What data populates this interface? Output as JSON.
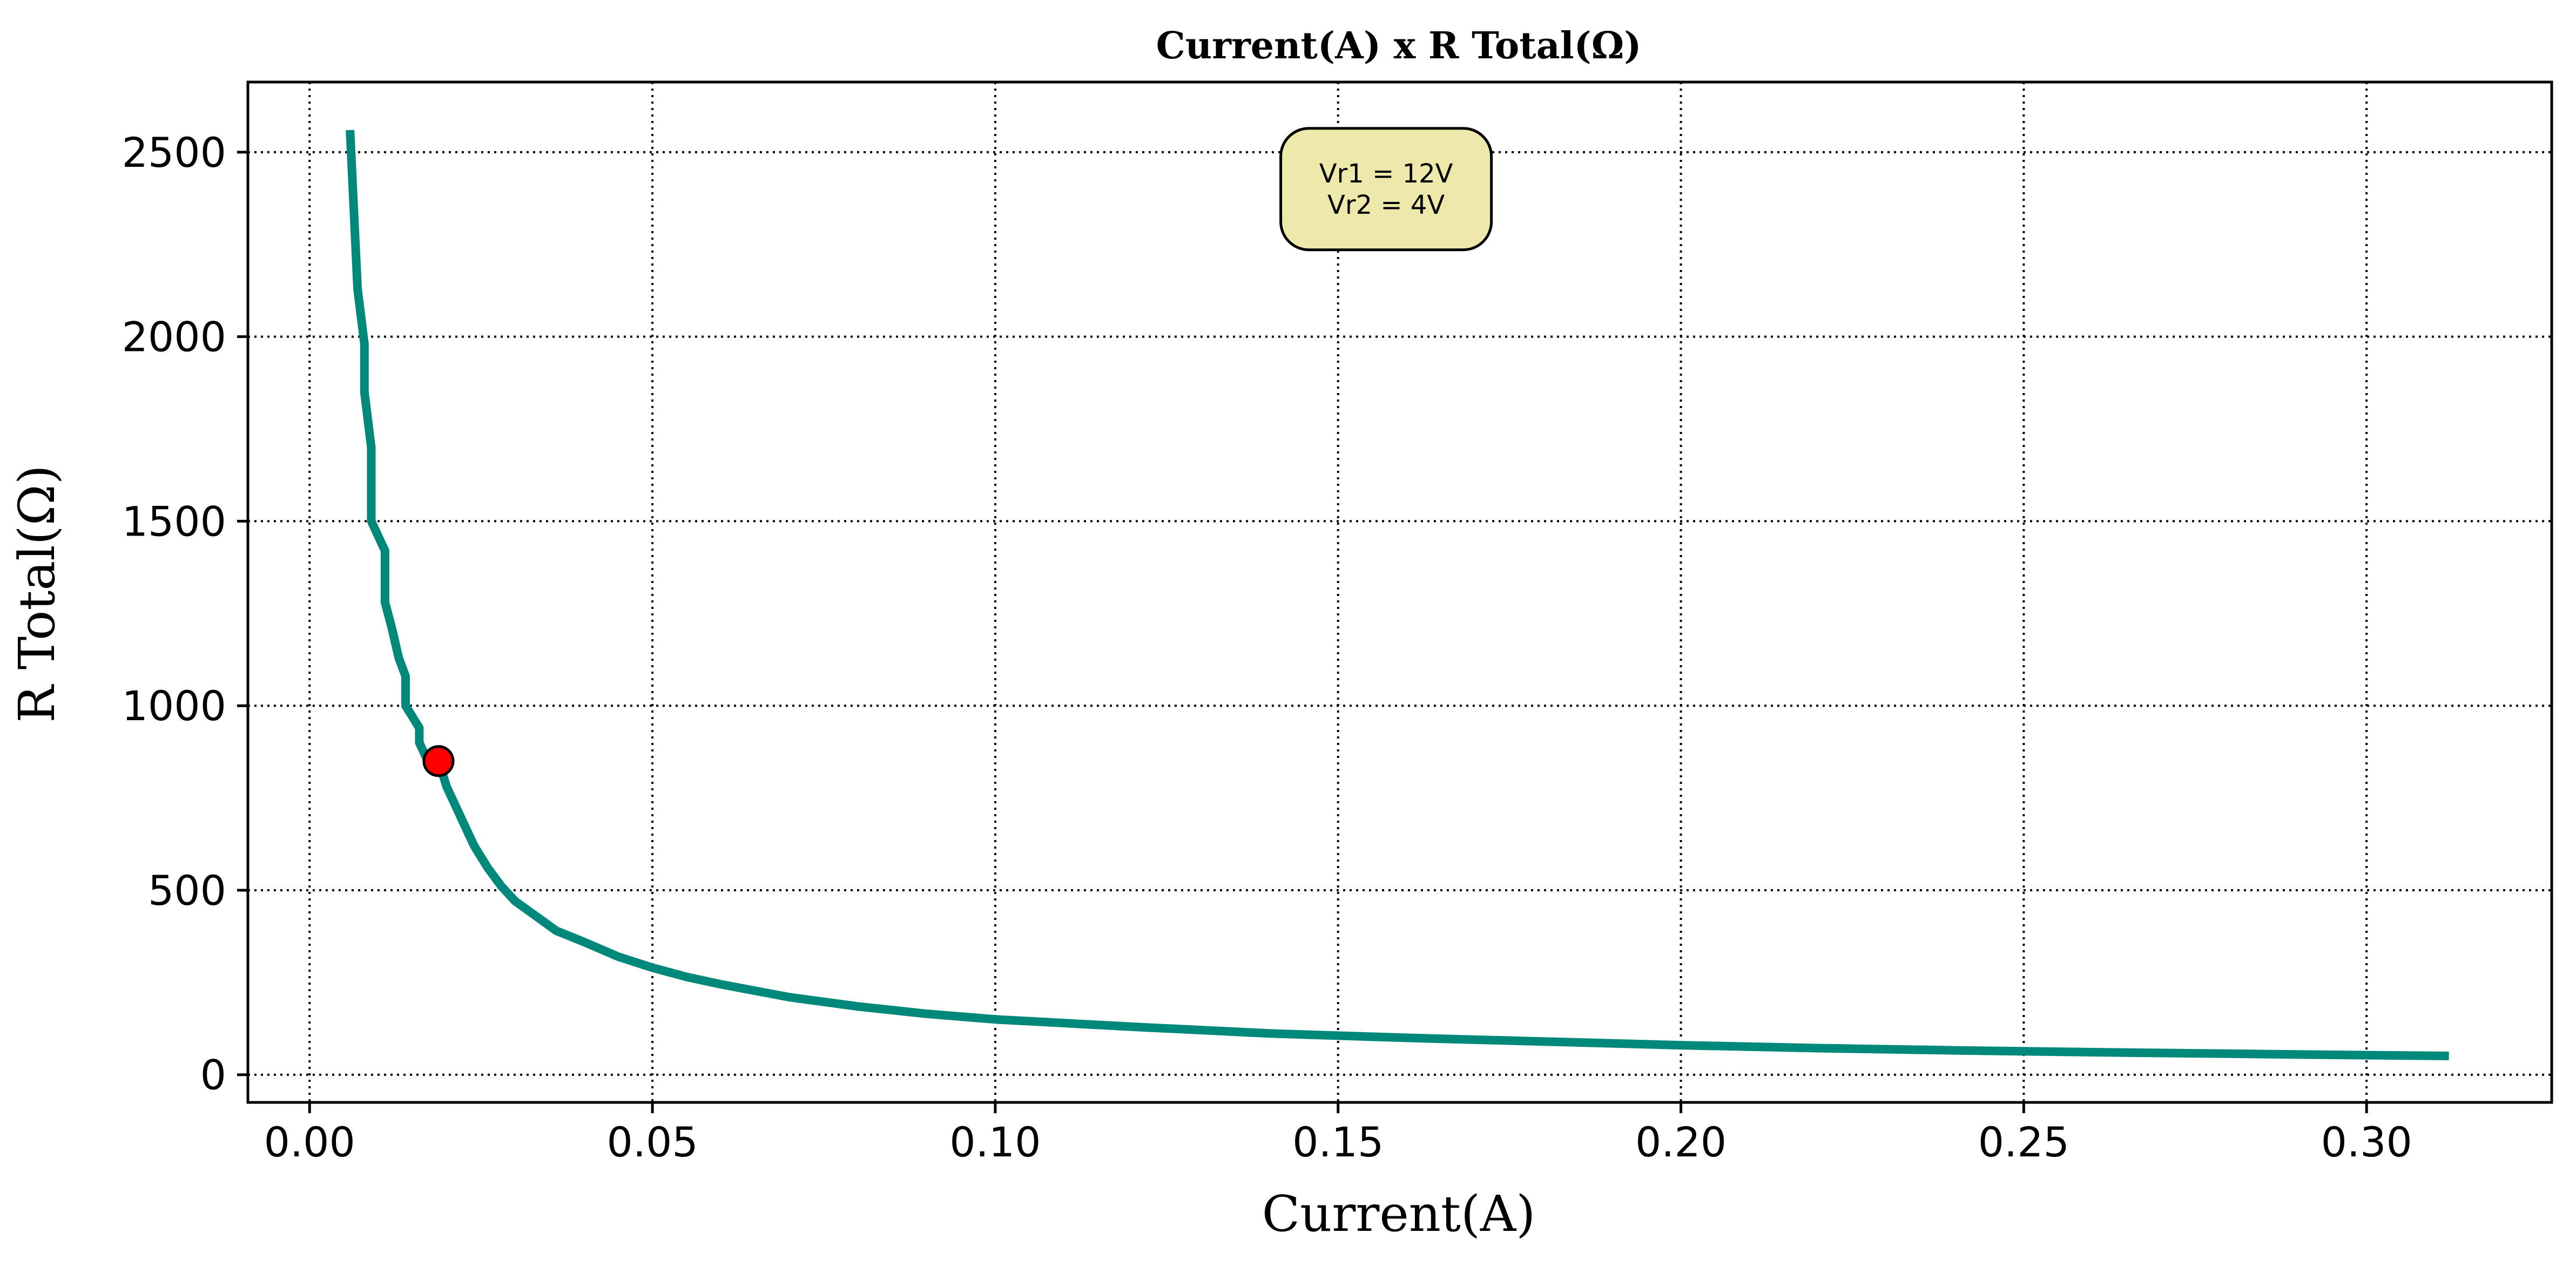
{
  "chart_data": {
    "type": "line",
    "title": "Current(A) x R Total(Ω)",
    "xlabel": "Current(A)",
    "ylabel": "R Total(Ω)",
    "xlim": [
      -0.009,
      0.327
    ],
    "ylim": [
      -75,
      2690
    ],
    "xticks": [
      0.0,
      0.05,
      0.1,
      0.15,
      0.2,
      0.25,
      0.3
    ],
    "xtick_labels": [
      "0.00",
      "0.05",
      "0.10",
      "0.15",
      "0.20",
      "0.25",
      "0.30"
    ],
    "yticks": [
      0,
      500,
      1000,
      1500,
      2000,
      2500
    ],
    "ytick_labels": [
      "0",
      "500",
      "1000",
      "1500",
      "2000",
      "2500"
    ],
    "grid": true,
    "colors": {
      "line": "#00897B",
      "marker_fill": "#FF0000",
      "marker_edge": "#000000",
      "annotation_fill": "#EEE8AA"
    },
    "series": [
      {
        "x": [
          0.0059,
          0.007,
          0.008,
          0.008,
          0.009,
          0.009,
          0.011,
          0.011,
          0.012,
          0.013,
          0.014,
          0.014,
          0.016,
          0.016,
          0.017,
          0.0188,
          0.02,
          0.022,
          0.024,
          0.026,
          0.028,
          0.03,
          0.033,
          0.036,
          0.04,
          0.045,
          0.05,
          0.055,
          0.06,
          0.07,
          0.08,
          0.09,
          0.1,
          0.12,
          0.14,
          0.16,
          0.18,
          0.2,
          0.22,
          0.24,
          0.26,
          0.28,
          0.3,
          0.312
        ],
        "y": [
          2560,
          2130,
          1980,
          1850,
          1700,
          1500,
          1420,
          1280,
          1210,
          1130,
          1080,
          1000,
          940,
          900,
          860,
          850,
          780,
          700,
          620,
          560,
          510,
          470,
          430,
          390,
          360,
          320,
          290,
          265,
          245,
          210,
          185,
          165,
          150,
          130,
          112,
          100,
          90,
          80,
          72,
          66,
          61,
          57,
          53,
          51
        ]
      }
    ],
    "marker": {
      "x": 0.0188,
      "y": 850
    },
    "annotation": {
      "lines": [
        "Vr1 = 12V",
        "Vr2 = 4V"
      ],
      "x": 0.157,
      "y": 2400
    }
  }
}
